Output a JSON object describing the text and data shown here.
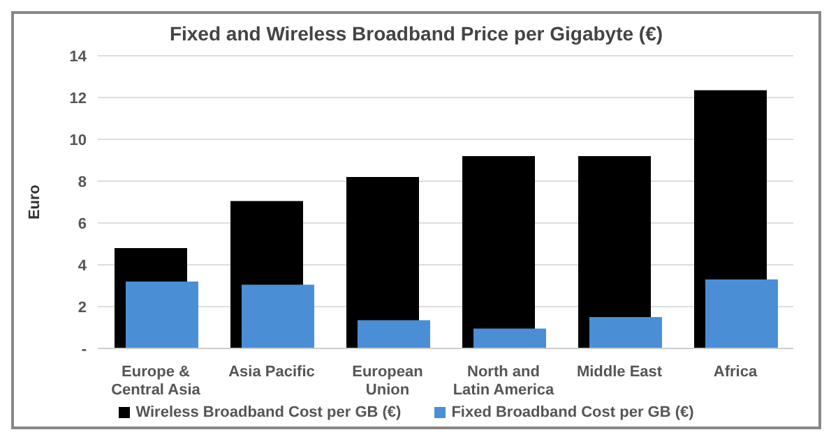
{
  "chart_data": {
    "type": "bar",
    "title": "Fixed and Wireless Broadband Price per Gigabyte (€)",
    "ylabel": "Euro",
    "categories": [
      "Europe & Central Asia",
      "Asia Pacific",
      "European Union",
      "North and Latin America",
      "Middle East",
      "Africa"
    ],
    "series": [
      {
        "name": "Wireless Broadband Cost per GB (€)",
        "color": "#000000",
        "values": [
          4.8,
          7.05,
          8.2,
          9.2,
          9.2,
          12.35
        ]
      },
      {
        "name": "Fixed Broadband Cost per GB (€)",
        "color": "#4a8fd6",
        "values": [
          3.2,
          3.05,
          1.35,
          0.95,
          1.5,
          3.3
        ]
      }
    ],
    "ylim": [
      0,
      14
    ],
    "yticks": [
      {
        "value": 0,
        "label": "-"
      },
      2,
      4,
      6,
      8,
      10,
      12,
      14
    ],
    "grid": "y",
    "legend": "bottom"
  }
}
